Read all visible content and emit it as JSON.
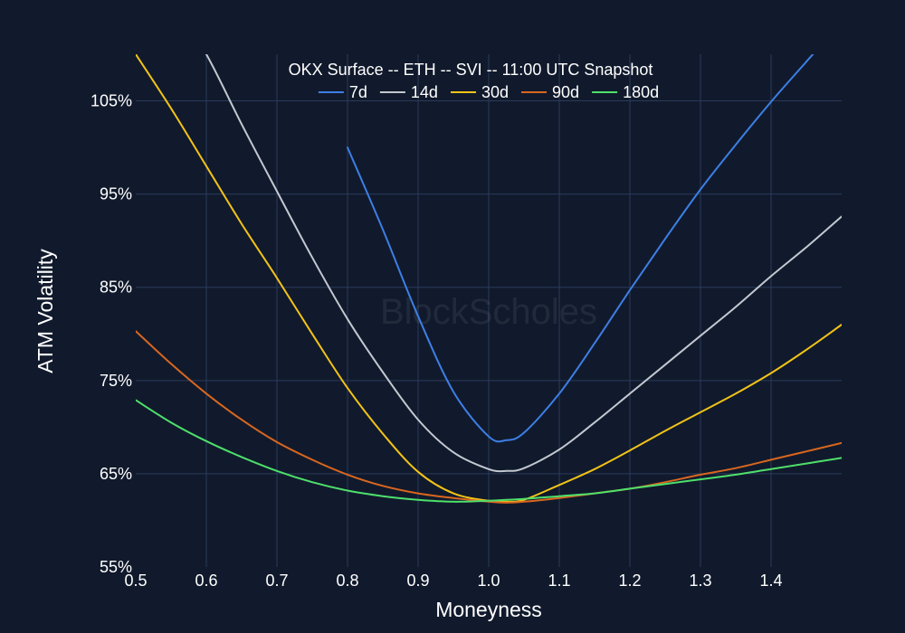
{
  "chart_data": {
    "type": "line",
    "title": "OKX Surface -- ETH -- SVI -- 11:00 UTC Snapshot",
    "xlabel": "Moneyness",
    "ylabel": "ATM Volatility",
    "xlim": [
      0.5,
      1.5
    ],
    "ylim": [
      55,
      110
    ],
    "xticks": [
      0.5,
      0.6,
      0.7,
      0.8,
      0.9,
      1.0,
      1.1,
      1.2,
      1.3,
      1.4
    ],
    "xtick_labels": [
      "0.5",
      "0.6",
      "0.7",
      "0.8",
      "0.9",
      "1.0",
      "1.1",
      "1.2",
      "1.3",
      "1.4"
    ],
    "yticks": [
      55,
      65,
      75,
      85,
      95,
      105
    ],
    "ytick_labels": [
      "55%",
      "65%",
      "75%",
      "85%",
      "95%",
      "105%"
    ],
    "grid": true,
    "legend_position": "top-center",
    "watermark": "BlockScholes",
    "x": [
      0.5,
      0.55,
      0.6,
      0.65,
      0.7,
      0.75,
      0.8,
      0.85,
      0.9,
      0.95,
      1.0,
      1.025,
      1.05,
      1.1,
      1.15,
      1.2,
      1.25,
      1.3,
      1.35,
      1.4,
      1.45,
      1.5
    ],
    "series": [
      {
        "name": "7d",
        "color": "#3d7fe6",
        "values": [
          null,
          null,
          null,
          null,
          null,
          null,
          100.0,
          91.2,
          81.9,
          73.8,
          69.0,
          68.6,
          69.4,
          73.6,
          79.0,
          84.7,
          90.2,
          95.5,
          100.3,
          104.9,
          109.2,
          113.5
        ]
      },
      {
        "name": "14d",
        "color": "#c3c8d0",
        "values": [
          null,
          116.0,
          110.0,
          102.5,
          95.3,
          88.2,
          81.6,
          75.9,
          70.8,
          67.3,
          65.5,
          65.3,
          65.6,
          67.6,
          70.5,
          73.6,
          76.7,
          79.8,
          82.9,
          86.2,
          89.3,
          92.6
        ]
      },
      {
        "name": "30d",
        "color": "#f2c318",
        "values": [
          110.0,
          104.2,
          98.0,
          91.8,
          86.0,
          80.0,
          74.2,
          69.3,
          65.2,
          62.9,
          62.1,
          62.0,
          62.2,
          63.8,
          65.5,
          67.5,
          69.6,
          71.6,
          73.6,
          75.8,
          78.3,
          81.0
        ]
      },
      {
        "name": "90d",
        "color": "#d9661f",
        "values": [
          80.3,
          76.8,
          73.6,
          70.8,
          68.4,
          66.5,
          64.9,
          63.7,
          62.9,
          62.4,
          62.0,
          61.9,
          62.0,
          62.4,
          62.9,
          63.4,
          64.1,
          64.9,
          65.6,
          66.5,
          67.4,
          68.3
        ]
      },
      {
        "name": "180d",
        "color": "#4ee06b",
        "values": [
          72.9,
          70.5,
          68.5,
          66.8,
          65.3,
          64.1,
          63.2,
          62.6,
          62.2,
          62.0,
          62.1,
          62.2,
          62.3,
          62.6,
          62.9,
          63.4,
          63.9,
          64.4,
          64.9,
          65.5,
          66.1,
          66.7
        ]
      }
    ]
  }
}
